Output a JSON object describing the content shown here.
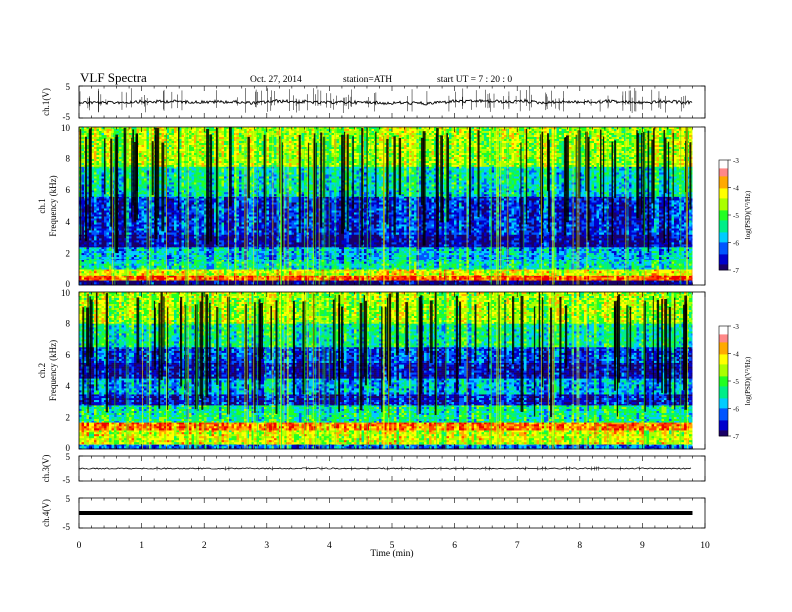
{
  "header": {
    "title": "VLF  Spectra",
    "date": "Oct. 27, 2014",
    "station": "station=ATH",
    "start": "start  UT  =   7  : 20 : 0"
  },
  "chart_data": [
    {
      "type": "line",
      "panel": "ch1-waveform",
      "ylabel": "ch.1(V)",
      "ylim": [
        -5,
        5
      ],
      "y_ticks": [
        "5",
        "-5"
      ],
      "x_range": [
        0,
        9.8
      ],
      "level_mean": 0.0,
      "color": "#000000"
    },
    {
      "type": "heatmap",
      "panel": "ch1-spectrogram",
      "ylabel_top": "ch.1",
      "ylabel": "Frequency  (kHz)",
      "ylim": [
        0,
        10
      ],
      "y_ticks": [
        "0",
        "2",
        "4",
        "6",
        "8",
        "10"
      ],
      "x_range": [
        0,
        9.8
      ],
      "colorbar": {
        "label": "log(PSD)(V²/Hz)",
        "ticks": [
          "-3",
          "-4",
          "-5",
          "-6",
          "-7"
        ],
        "range": [
          -7,
          -3
        ]
      },
      "bands_khz": [
        {
          "from": 0,
          "to": 0.3,
          "level": -7
        },
        {
          "from": 0.3,
          "to": 0.6,
          "level": -3.4
        },
        {
          "from": 0.6,
          "to": 1.0,
          "level": -4.3
        },
        {
          "from": 1.0,
          "to": 1.6,
          "level": -5.5
        },
        {
          "from": 1.6,
          "to": 2.4,
          "level": -5.8
        },
        {
          "from": 2.4,
          "to": 3.2,
          "level": -6.8
        },
        {
          "from": 3.2,
          "to": 5.6,
          "level": -6.4
        },
        {
          "from": 5.6,
          "to": 6.0,
          "level": -5.6
        },
        {
          "from": 6.0,
          "to": 7.5,
          "level": -5.5
        },
        {
          "from": 7.5,
          "to": 10,
          "level": -4.6
        }
      ]
    },
    {
      "type": "heatmap",
      "panel": "ch2-spectrogram",
      "ylabel_top": "ch.2",
      "ylabel": "Frequency  (kHz)",
      "ylim": [
        0,
        10
      ],
      "y_ticks": [
        "0",
        "2",
        "4",
        "6",
        "8",
        "10"
      ],
      "x_range": [
        0,
        9.8
      ],
      "colorbar": {
        "label": "log(PSD)(V²/Hz)",
        "ticks": [
          "-3",
          "-4",
          "-5",
          "-6",
          "-7"
        ],
        "range": [
          -7,
          -3
        ]
      },
      "bands_khz": [
        {
          "from": 0,
          "to": 0.3,
          "level": -6.2
        },
        {
          "from": 0.3,
          "to": 1.2,
          "level": -4.4
        },
        {
          "from": 1.2,
          "to": 1.7,
          "level": -3.6
        },
        {
          "from": 1.7,
          "to": 2.8,
          "level": -5.4
        },
        {
          "from": 2.8,
          "to": 3.5,
          "level": -6.6
        },
        {
          "from": 3.5,
          "to": 4.5,
          "level": -5.9
        },
        {
          "from": 4.5,
          "to": 5.5,
          "level": -6.7
        },
        {
          "from": 5.5,
          "to": 6.5,
          "level": -6.3
        },
        {
          "from": 6.5,
          "to": 8.0,
          "level": -5.4
        },
        {
          "from": 8.0,
          "to": 10,
          "level": -4.6
        }
      ]
    },
    {
      "type": "line",
      "panel": "ch3-waveform",
      "ylabel": "ch.3(V)",
      "ylim": [
        -5,
        5
      ],
      "y_ticks": [
        "5",
        "-5"
      ],
      "x_range": [
        0,
        9.8
      ],
      "level_mean": 0.0,
      "color": "#000000"
    },
    {
      "type": "line",
      "panel": "ch4-waveform",
      "ylabel": "ch.4(V)",
      "ylim": [
        -5,
        5
      ],
      "y_ticks": [
        "5",
        "-5"
      ],
      "x_range": [
        0,
        9.8
      ],
      "level_mean": 0.0,
      "color": "#000000"
    }
  ],
  "x_axis": {
    "label": "Time  (min)",
    "ticks": [
      "0",
      "1",
      "2",
      "3",
      "4",
      "5",
      "6",
      "7",
      "8",
      "9",
      "10"
    ],
    "range": [
      0,
      10
    ]
  },
  "colors": {
    "palette": [
      "#000000",
      "#1a0066",
      "#0000cc",
      "#0055ff",
      "#00ccff",
      "#00ee88",
      "#22ff22",
      "#aaff00",
      "#ffff00",
      "#ffaa00",
      "#ff4400",
      "#ee0000",
      "#ffffff"
    ]
  }
}
